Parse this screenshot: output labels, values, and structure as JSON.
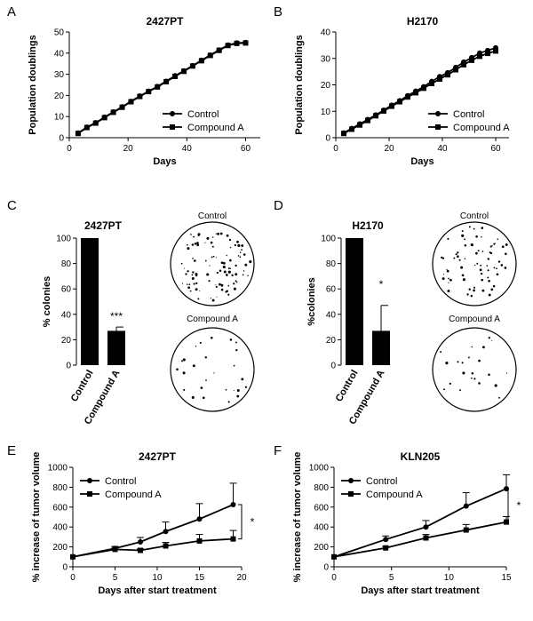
{
  "panels": {
    "A": {
      "label": "A"
    },
    "B": {
      "label": "B"
    },
    "C": {
      "label": "C",
      "dish_labels": [
        "Control",
        "Compound A"
      ]
    },
    "D": {
      "label": "D",
      "dish_labels": [
        "Control",
        "Compound A"
      ]
    },
    "E": {
      "label": "E"
    },
    "F": {
      "label": "F"
    }
  },
  "colors": {
    "ink": "#000000",
    "background": "#ffffff"
  },
  "chart_data": [
    {
      "id": "A",
      "type": "line",
      "title": "2427PT",
      "xlabel": "Days",
      "ylabel": "Population doublings",
      "xlim": [
        0,
        65
      ],
      "ylim": [
        0,
        50
      ],
      "xticks": [
        0,
        20,
        40,
        60
      ],
      "yticks": [
        0,
        10,
        20,
        30,
        40,
        50
      ],
      "legend": "bottom-right",
      "series": [
        {
          "name": "Control",
          "marker": "circle",
          "x": [
            3,
            6,
            9,
            12,
            15,
            18,
            21,
            24,
            27,
            30,
            33,
            36,
            39,
            42,
            45,
            48,
            51,
            54,
            57,
            60
          ],
          "y": [
            2.2,
            5,
            7.1,
            9.7,
            12.2,
            14.6,
            17.2,
            19.7,
            22,
            24.2,
            26.7,
            29.3,
            31.6,
            34.1,
            36.6,
            39.1,
            41.5,
            43.8,
            44.8,
            45
          ]
        },
        {
          "name": "Compound A",
          "marker": "square",
          "x": [
            3,
            6,
            9,
            12,
            15,
            18,
            21,
            24,
            27,
            30,
            33,
            36,
            39,
            42,
            45,
            48,
            51,
            54,
            57,
            60
          ],
          "y": [
            2,
            4.8,
            6.9,
            9.5,
            12,
            14.4,
            17,
            19.5,
            21.8,
            24,
            26.5,
            29,
            31.4,
            33.9,
            36.4,
            38.9,
            41.3,
            43.6,
            44.6,
            44.8
          ]
        }
      ]
    },
    {
      "id": "B",
      "type": "line",
      "title": "H2170",
      "xlabel": "Days",
      "ylabel": "Population doublings",
      "xlim": [
        0,
        65
      ],
      "ylim": [
        0,
        40
      ],
      "xticks": [
        0,
        20,
        40,
        60
      ],
      "yticks": [
        0,
        10,
        20,
        30,
        40
      ],
      "legend": "bottom-right",
      "series": [
        {
          "name": "Control",
          "marker": "circle",
          "x": [
            3,
            6,
            9,
            12,
            15,
            18,
            21,
            24,
            27,
            30,
            33,
            36,
            39,
            42,
            45,
            48,
            51,
            54,
            57,
            60
          ],
          "y": [
            1.8,
            3.5,
            5.2,
            6.9,
            8.6,
            10.4,
            12.3,
            14,
            15.9,
            17.6,
            19.3,
            21.3,
            23.1,
            24.6,
            26.6,
            28.6,
            30.3,
            32,
            33,
            34
          ]
        },
        {
          "name": "Compound A",
          "marker": "square",
          "x": [
            3,
            6,
            9,
            12,
            15,
            18,
            21,
            24,
            27,
            30,
            33,
            36,
            39,
            42,
            45,
            48,
            51,
            54,
            57,
            60
          ],
          "y": [
            1.6,
            3.2,
            4.8,
            6.5,
            8.3,
            10.1,
            11.9,
            13.6,
            15.4,
            17,
            18.7,
            20.5,
            22.2,
            23.8,
            25.7,
            27.6,
            29.3,
            30.8,
            31.9,
            32.8
          ]
        }
      ]
    },
    {
      "id": "C",
      "type": "bar",
      "title": "2427PT",
      "xlabel": "",
      "ylabel": "% colonies",
      "ylim": [
        0,
        100
      ],
      "yticks": [
        0,
        20,
        40,
        60,
        80,
        100
      ],
      "categories": [
        "Control",
        "Compound A"
      ],
      "values": [
        100,
        27
      ],
      "errors": [
        0,
        3
      ],
      "annotations": [
        "",
        "***"
      ]
    },
    {
      "id": "D",
      "type": "bar",
      "title": "H2170",
      "xlabel": "",
      "ylabel": "%colonies",
      "ylim": [
        0,
        100
      ],
      "yticks": [
        0,
        20,
        40,
        60,
        80,
        100
      ],
      "categories": [
        "Control",
        "Compound A"
      ],
      "values": [
        100,
        27
      ],
      "errors": [
        0,
        20
      ],
      "annotations": [
        "",
        "*"
      ]
    },
    {
      "id": "E",
      "type": "line",
      "title": "2427PT",
      "xlabel": "Days after start treatment",
      "ylabel": "% increase of tumor volume",
      "xlim": [
        0,
        20
      ],
      "ylim": [
        0,
        1000
      ],
      "xticks": [
        0,
        5,
        10,
        15,
        20
      ],
      "yticks": [
        0,
        200,
        400,
        600,
        800,
        1000
      ],
      "legend": "top-left",
      "significance": "*",
      "series": [
        {
          "name": "Control",
          "marker": "circle",
          "x": [
            0,
            5,
            8,
            11,
            15,
            19
          ],
          "y": [
            100,
            185,
            250,
            355,
            480,
            625
          ],
          "err": [
            0,
            20,
            45,
            95,
            155,
            215
          ]
        },
        {
          "name": "Compound A",
          "marker": "square",
          "x": [
            0,
            5,
            8,
            11,
            15,
            19
          ],
          "y": [
            100,
            175,
            165,
            210,
            260,
            280
          ],
          "err": [
            0,
            20,
            15,
            35,
            65,
            85
          ]
        }
      ]
    },
    {
      "id": "F",
      "type": "line",
      "title": "KLN205",
      "xlabel": "Days after start treatment",
      "ylabel": "% increase of tumor volume",
      "xlim": [
        0,
        15
      ],
      "ylim": [
        0,
        1000
      ],
      "xticks": [
        0,
        5,
        10,
        15
      ],
      "yticks": [
        0,
        200,
        400,
        600,
        800,
        1000
      ],
      "legend": "top-left",
      "significance": "*",
      "series": [
        {
          "name": "Control",
          "marker": "circle",
          "x": [
            0,
            4.5,
            8,
            11.5,
            15
          ],
          "y": [
            100,
            275,
            400,
            610,
            785
          ],
          "err": [
            0,
            35,
            65,
            135,
            140
          ]
        },
        {
          "name": "Compound A",
          "marker": "square",
          "x": [
            0,
            4.5,
            8,
            11.5,
            15
          ],
          "y": [
            100,
            190,
            290,
            370,
            450
          ],
          "err": [
            0,
            15,
            35,
            55,
            55
          ]
        }
      ]
    }
  ]
}
